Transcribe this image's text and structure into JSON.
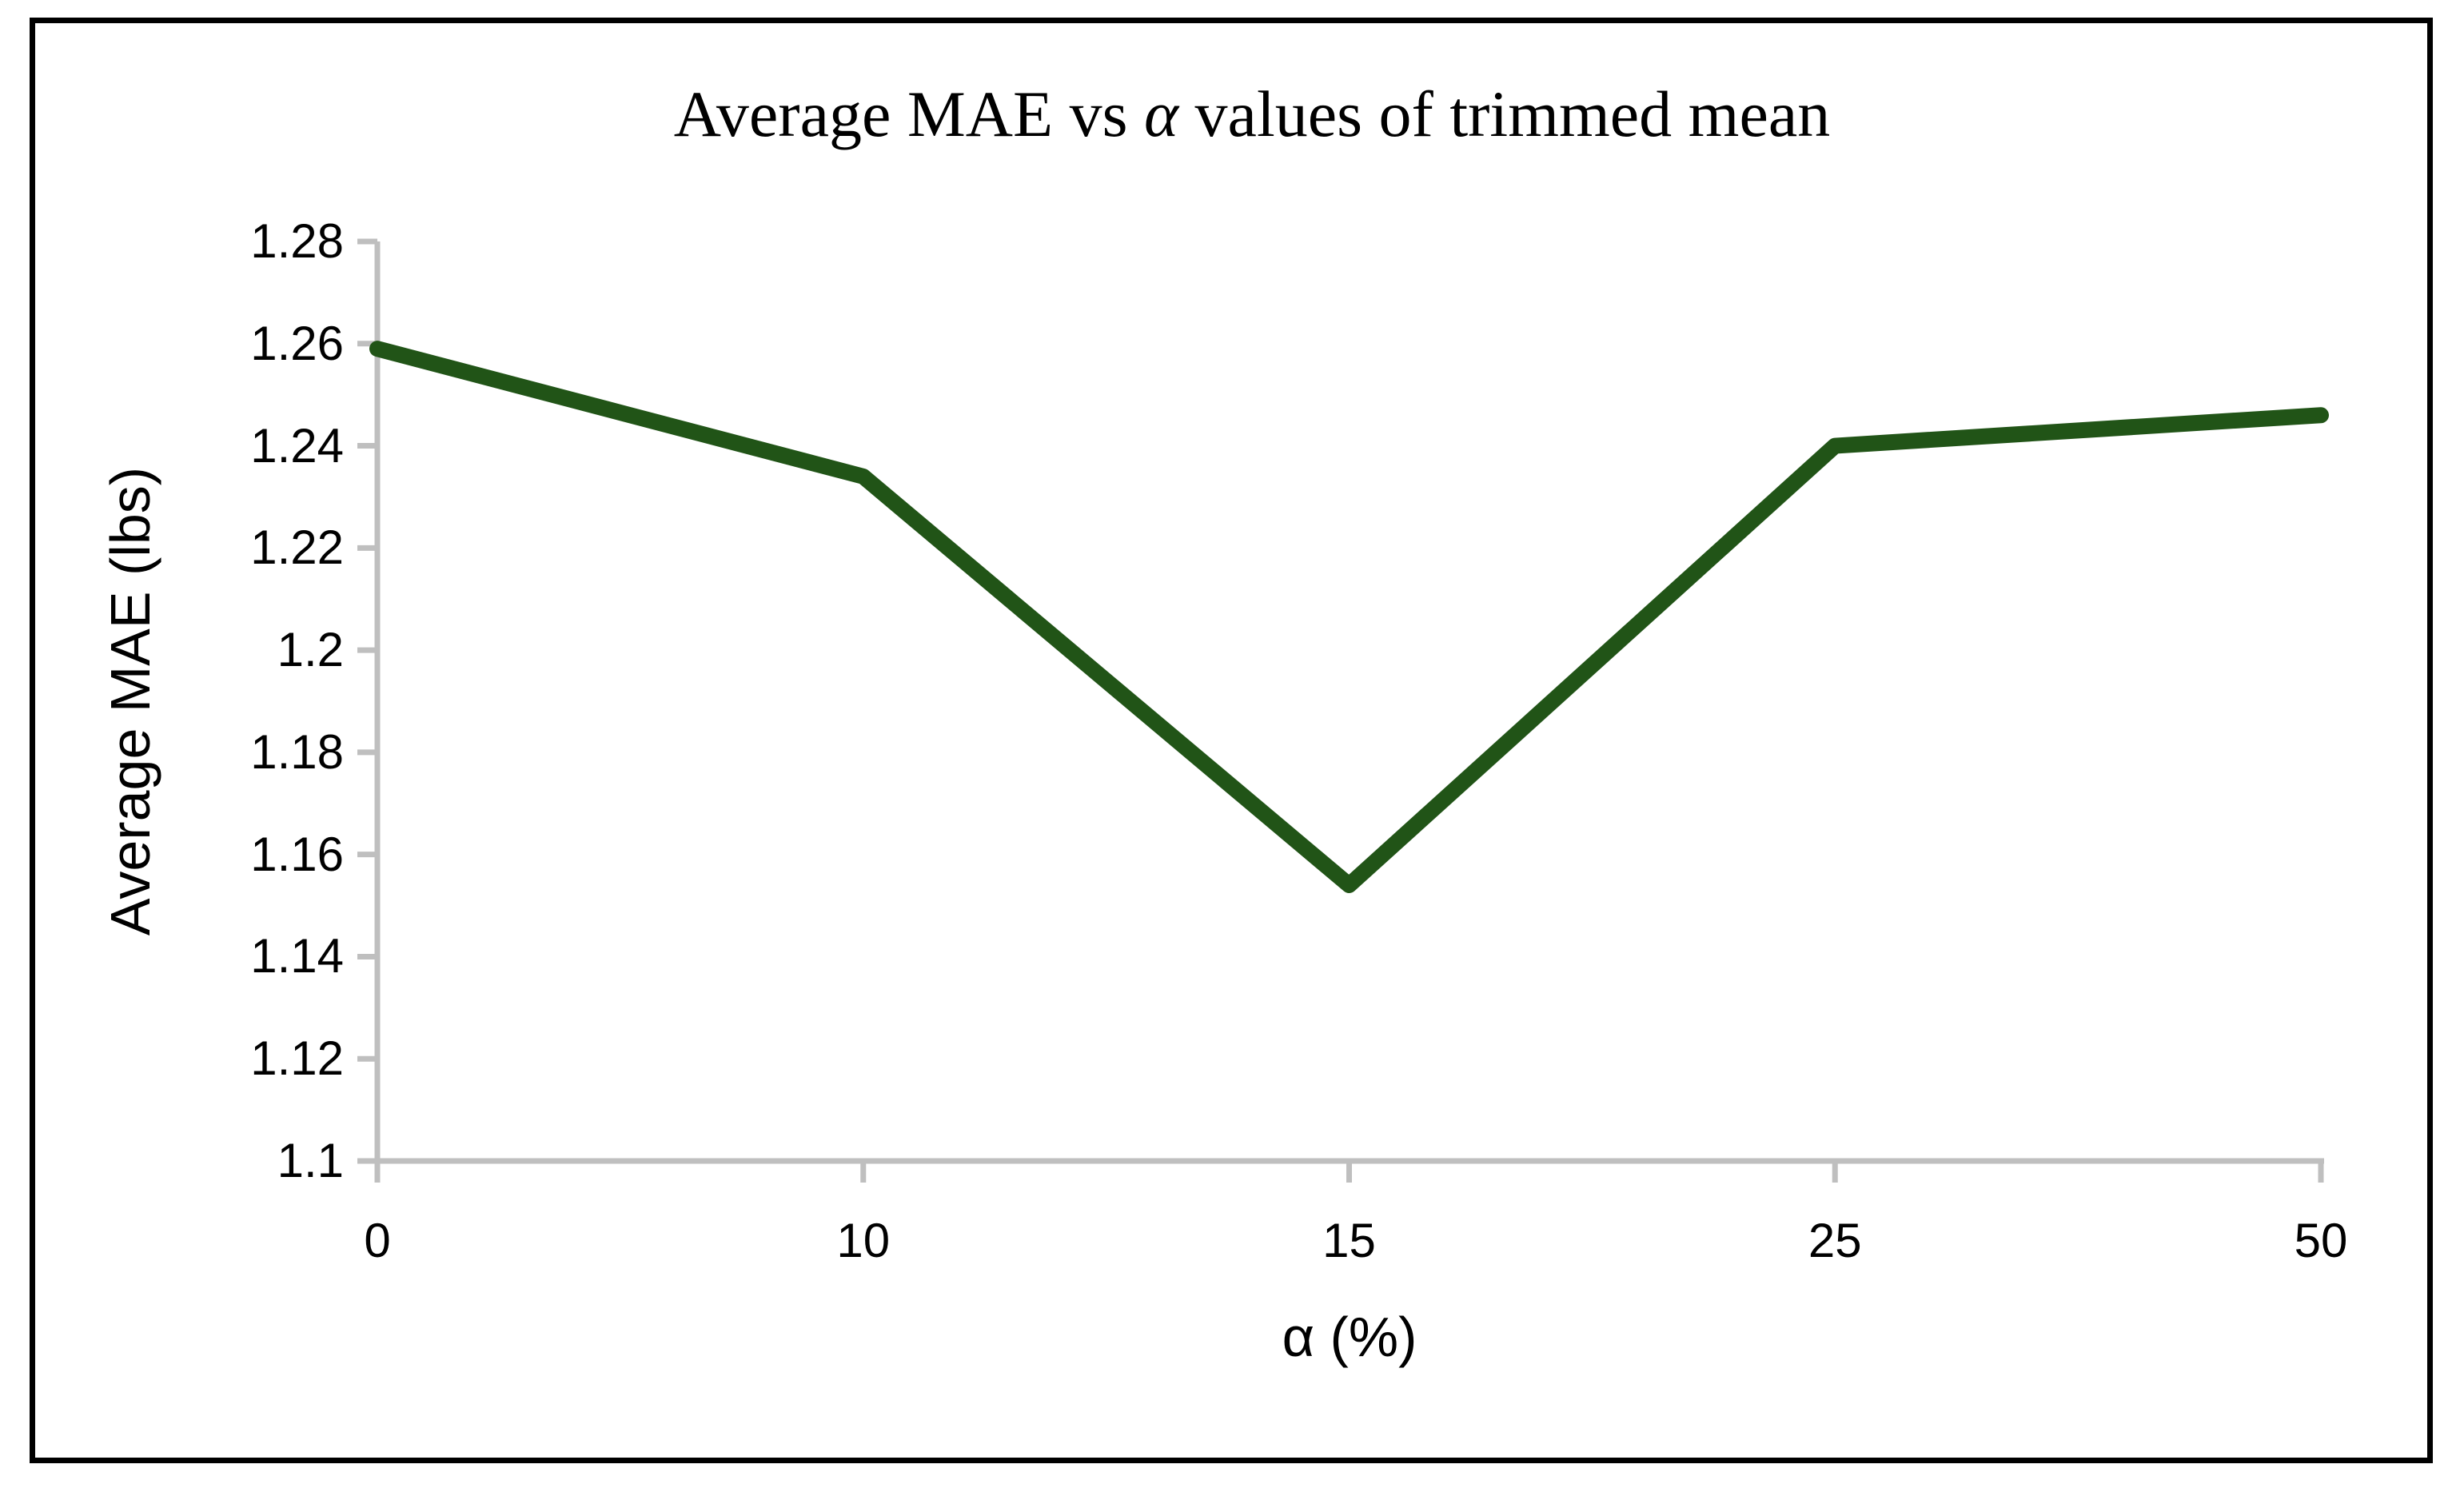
{
  "chart_data": {
    "type": "line",
    "title": "Average MAE vs α values of trimmed mean",
    "title_parts": {
      "prefix": "Average MAE vs ",
      "alpha": "α",
      "suffix": " values of trimmed mean"
    },
    "categories": [
      "0",
      "10",
      "15",
      "25",
      "50"
    ],
    "values": [
      1.259,
      1.234,
      1.154,
      1.24,
      1.246
    ],
    "xlabel": "α (%)",
    "ylabel": "Average MAE (lbs)",
    "ylim": [
      1.1,
      1.28
    ],
    "y_tick_values": [
      1.1,
      1.12,
      1.14,
      1.16,
      1.18,
      1.2,
      1.22,
      1.24,
      1.26,
      1.28
    ],
    "y_tick_labels": [
      "1.1",
      "1.12",
      "1.14",
      "1.16",
      "1.18",
      "1.2",
      "1.22",
      "1.24",
      "1.26",
      "1.28"
    ],
    "grid": false,
    "legend": "none",
    "line_color": "#215417",
    "axis_color": "#BFBFBF",
    "border_color": "#000000"
  }
}
